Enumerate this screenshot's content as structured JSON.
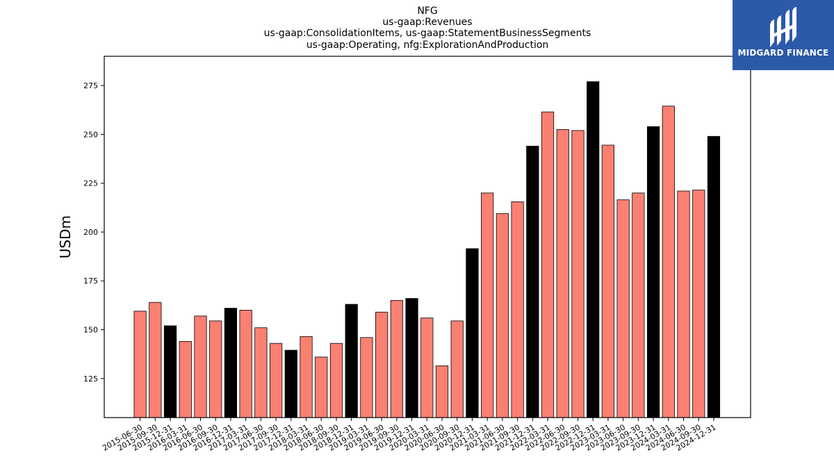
{
  "chart_data": {
    "type": "bar",
    "title_lines": [
      "NFG",
      "us-gaap:Revenues",
      "us-gaap:ConsolidationItems, us-gaap:StatementBusinessSegments",
      "us-gaap:Operating, nfg:ExplorationAndProduction"
    ],
    "xlabel": "",
    "ylabel": "USDm",
    "ylim": [
      105,
      290
    ],
    "yticks": [
      125,
      150,
      175,
      200,
      225,
      250,
      275
    ],
    "grid": false,
    "colors": {
      "quarter": "#fa8072",
      "year_end": "#000000",
      "edge": "#000000"
    },
    "categories": [
      "2015-06-30",
      "2015-09-30",
      "2015-12-31",
      "2016-03-31",
      "2016-06-30",
      "2016-09-30",
      "2016-12-31",
      "2017-03-31",
      "2017-06-30",
      "2017-09-30",
      "2017-12-31",
      "2018-03-31",
      "2018-06-30",
      "2018-09-30",
      "2018-12-31",
      "2019-03-31",
      "2019-06-30",
      "2019-09-30",
      "2019-12-31",
      "2020-03-31",
      "2020-06-30",
      "2020-09-30",
      "2020-12-31",
      "2021-03-31",
      "2021-06-30",
      "2021-09-30",
      "2021-12-31",
      "2022-03-31",
      "2022-06-30",
      "2022-09-30",
      "2022-12-31",
      "2023-03-31",
      "2023-06-30",
      "2023-09-30",
      "2023-12-31",
      "2024-03-31",
      "2024-06-30",
      "2024-09-30",
      "2024-12-31"
    ],
    "values": [
      159.5,
      164.0,
      152.0,
      144.0,
      157.0,
      154.5,
      161.0,
      160.0,
      151.0,
      143.0,
      139.5,
      146.5,
      136.0,
      143.0,
      163.0,
      146.0,
      159.0,
      165.0,
      166.0,
      156.0,
      131.5,
      154.5,
      191.5,
      220.0,
      209.5,
      215.5,
      244.0,
      261.5,
      252.5,
      252.0,
      277.0,
      244.5,
      216.5,
      220.0,
      254.0,
      264.5,
      221.0,
      221.5,
      249.0
    ],
    "highlight": [
      false,
      false,
      true,
      false,
      false,
      false,
      true,
      false,
      false,
      false,
      true,
      false,
      false,
      false,
      true,
      false,
      false,
      false,
      true,
      false,
      false,
      false,
      true,
      false,
      false,
      false,
      true,
      false,
      false,
      false,
      true,
      false,
      false,
      false,
      true,
      false,
      false,
      false,
      true
    ]
  },
  "logo": {
    "text": "MIDGARD FINANCE"
  }
}
